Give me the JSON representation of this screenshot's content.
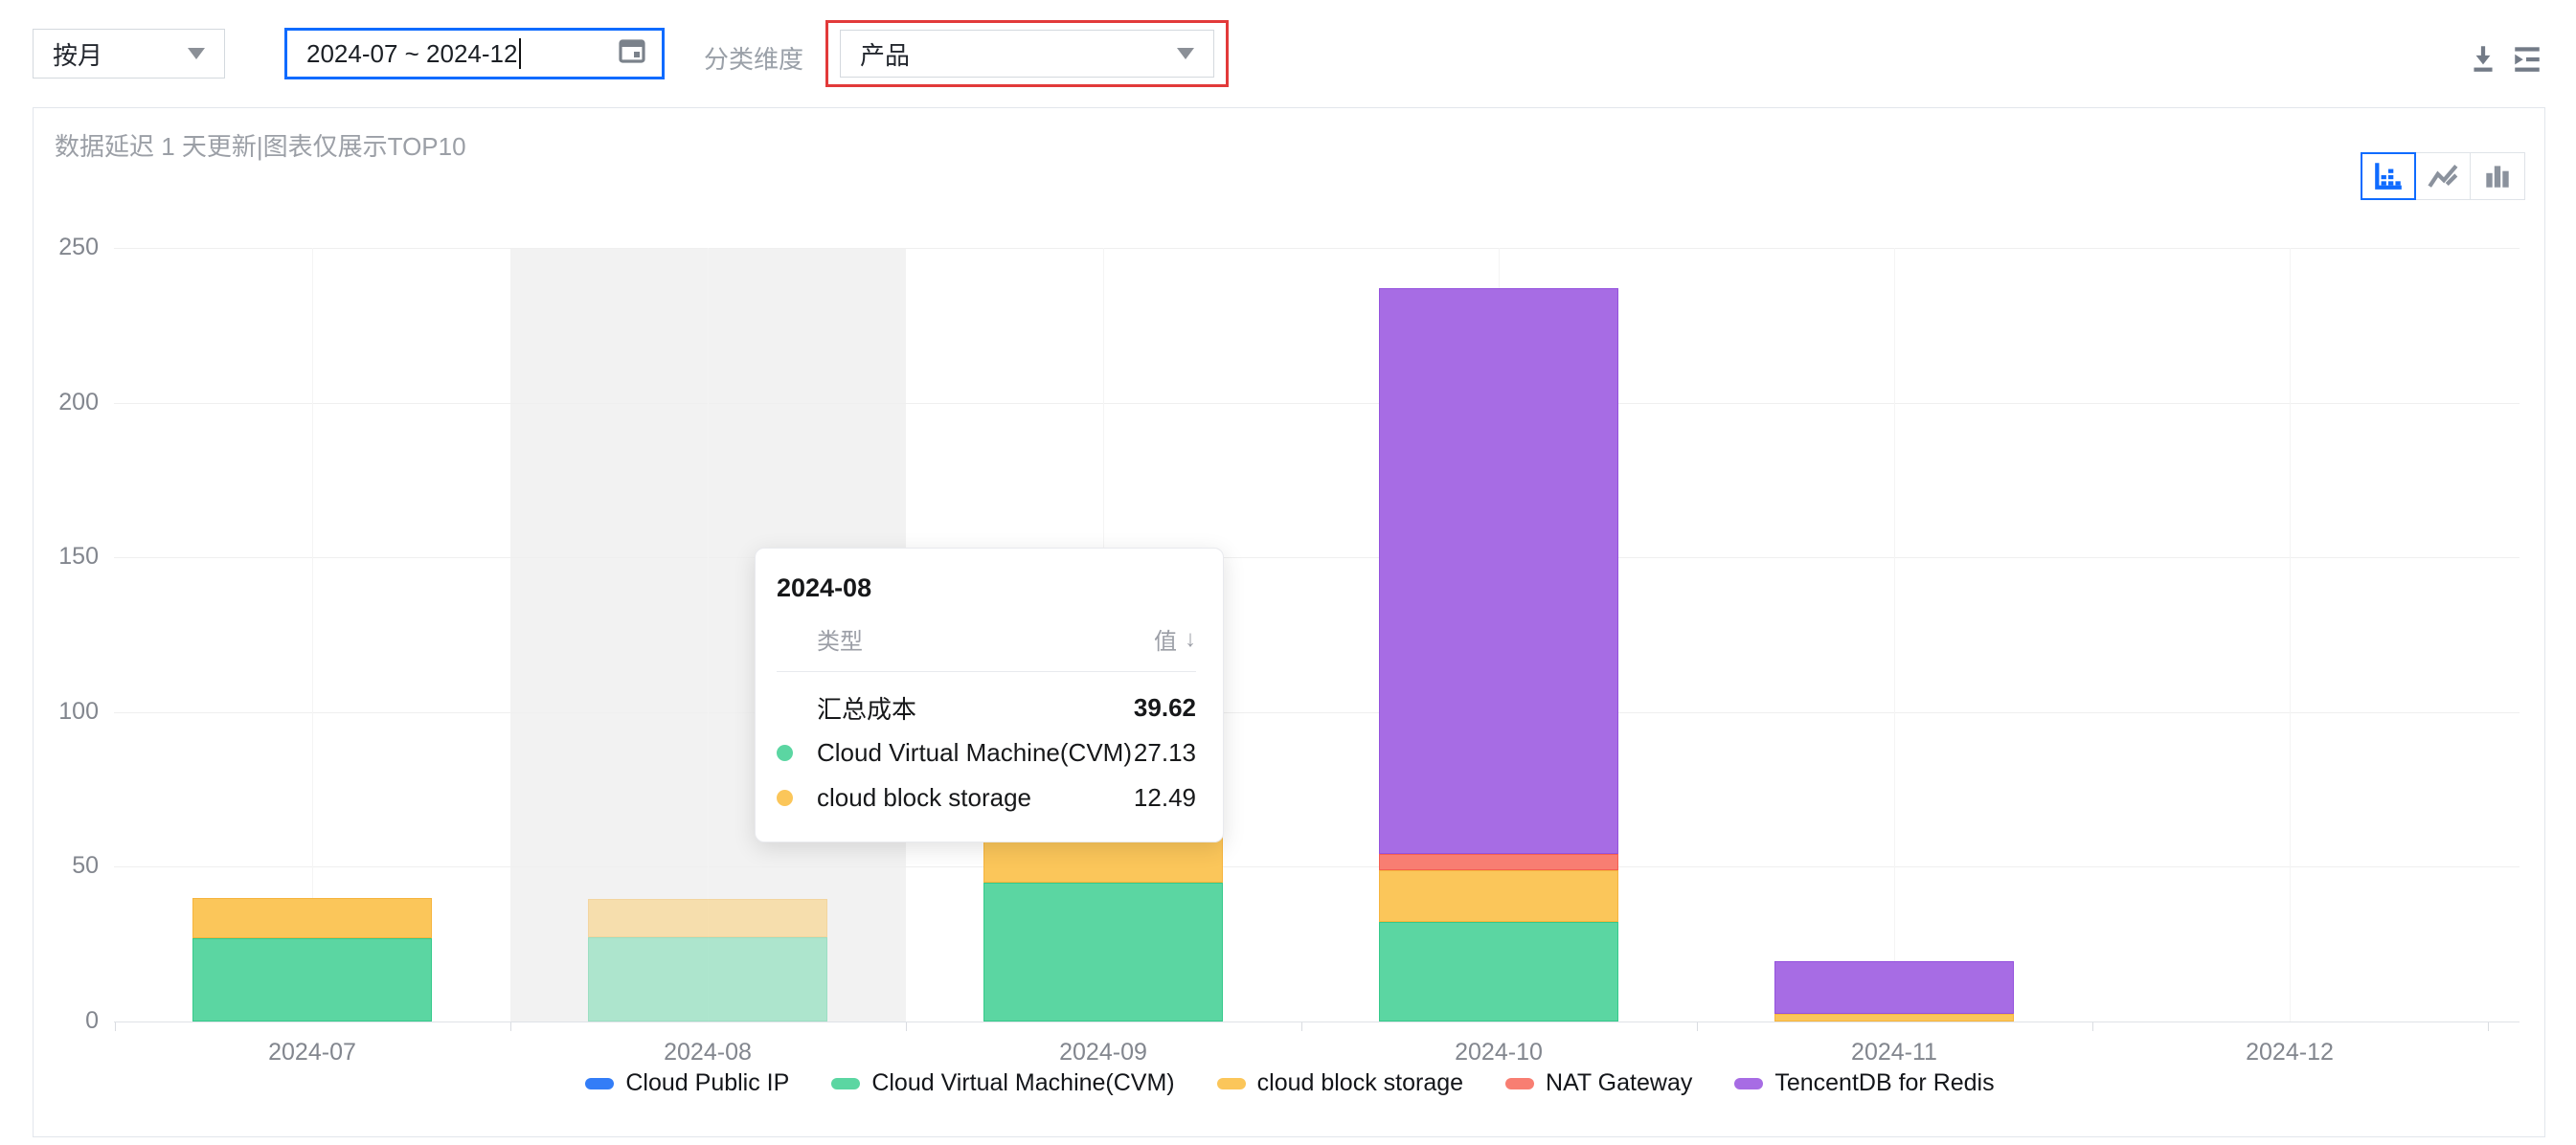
{
  "toolbar": {
    "granularity_value": "按月",
    "date_range_value": "2024-07 ~ 2024-12",
    "dimension_label": "分类维度",
    "dimension_value": "产品",
    "annotation_color": "#e23a3a",
    "focus_border_color": "#0f6bff"
  },
  "panel": {
    "note": "数据延迟 1 天更新|图表仅展示TOP10"
  },
  "tooltip": {
    "title": "2024-08",
    "col_type": "类型",
    "col_value": "值",
    "value_sort_arrow": "↓",
    "rows": [
      {
        "label": "汇总成本",
        "value": "39.62",
        "color": null,
        "bold": true
      },
      {
        "label": "Cloud Virtual Machine(CVM)",
        "value": "27.13",
        "color": "#5bd6a2"
      },
      {
        "label": "cloud block storage",
        "value": "12.49",
        "color": "#fbc65a"
      }
    ]
  },
  "chart_data": {
    "type": "bar",
    "stacked": true,
    "title": "",
    "xlabel": "",
    "ylabel": "",
    "ylim": [
      0,
      250
    ],
    "yticks": [
      0,
      50,
      100,
      150,
      200,
      250
    ],
    "grid": true,
    "legend_position": "bottom",
    "highlighted_category": "2024-08",
    "categories": [
      "2024-07",
      "2024-08",
      "2024-09",
      "2024-10",
      "2024-11",
      "2024-12"
    ],
    "series": [
      {
        "name": "Cloud Public IP",
        "color": "#337df7",
        "border": "#1f6bf0",
        "values": [
          0,
          0,
          0,
          0,
          0,
          0
        ]
      },
      {
        "name": "Cloud Virtual Machine(CVM)",
        "color": "#5bd6a2",
        "border": "#35ca8b",
        "values": [
          26.9,
          27.13,
          44.9,
          32.2,
          0,
          0
        ]
      },
      {
        "name": "cloud block storage",
        "color": "#fbc65a",
        "border": "#f6b43d",
        "values": [
          13.0,
          12.49,
          15.5,
          16.7,
          2.5,
          0
        ]
      },
      {
        "name": "NAT Gateway",
        "color": "#f87e72",
        "border": "#f55f50",
        "values": [
          0,
          0,
          0,
          5.3,
          0,
          0
        ]
      },
      {
        "name": "TencentDB for Redis",
        "color": "#a76ce4",
        "border": "#9452dd",
        "values": [
          0,
          0,
          0,
          182.9,
          17.0,
          0
        ]
      }
    ],
    "totals_note": "tooltip shows 汇总成本 39.62 for 2024-08"
  }
}
